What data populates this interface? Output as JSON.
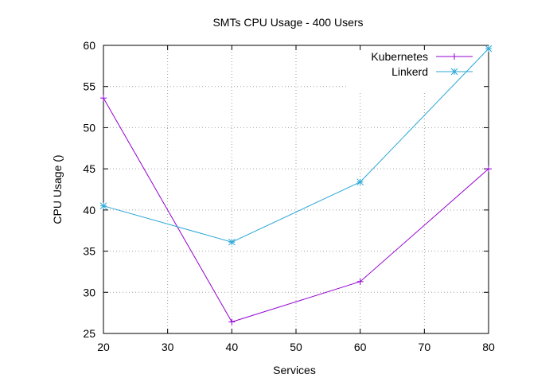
{
  "chart_data": {
    "type": "line",
    "title": "SMTs CPU Usage - 400 Users",
    "xlabel": "Services",
    "ylabel": "CPU Usage ()",
    "xlim": [
      20,
      80
    ],
    "ylim": [
      25,
      60
    ],
    "xticks": [
      20,
      30,
      40,
      50,
      60,
      70,
      80
    ],
    "yticks": [
      25,
      30,
      35,
      40,
      45,
      50,
      55,
      60
    ],
    "grid": true,
    "legend_position": "top-right",
    "series": [
      {
        "name": "Kubernetes",
        "color": "#9400d3",
        "marker": "plus",
        "x": [
          20,
          40,
          60,
          80
        ],
        "y": [
          53.6,
          26.4,
          31.3,
          45.0
        ]
      },
      {
        "name": "Linkerd",
        "color": "#2aa7d6",
        "marker": "star",
        "x": [
          20,
          40,
          60,
          80
        ],
        "y": [
          40.5,
          36.1,
          43.4,
          59.6
        ]
      }
    ]
  }
}
